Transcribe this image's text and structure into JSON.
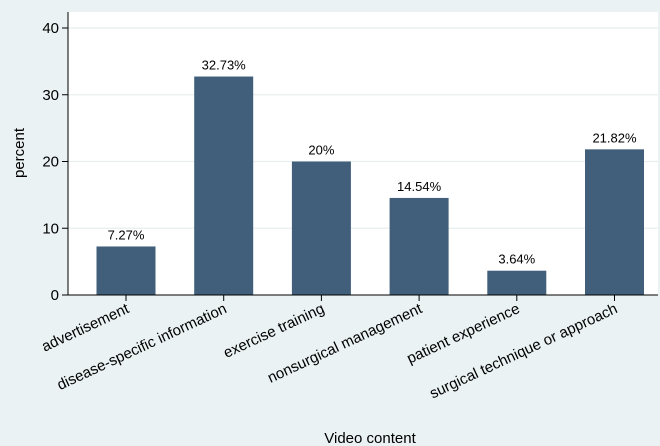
{
  "chart_data": {
    "type": "bar",
    "categories": [
      "advertisement",
      "disease-specific information",
      "exercise training",
      "nonsurgical management",
      "patient experience",
      "surgical technique or approach"
    ],
    "values": [
      7.27,
      32.73,
      20,
      14.54,
      3.64,
      21.82
    ],
    "data_labels": [
      "7.27%",
      "32.73%",
      "20%",
      "14.54%",
      "3.64%",
      "21.82%"
    ],
    "xlabel": "Video content",
    "ylabel": "percent",
    "ylim": [
      0,
      40
    ],
    "yticks": [
      0,
      10,
      20,
      30,
      40
    ],
    "grid": true,
    "legend": "none",
    "colors": {
      "bar": "#415f7a",
      "plot_background": "#ffffff",
      "outer_background": "#eaf2f3",
      "grid": "#e8eeef",
      "axis": "#000000"
    }
  }
}
